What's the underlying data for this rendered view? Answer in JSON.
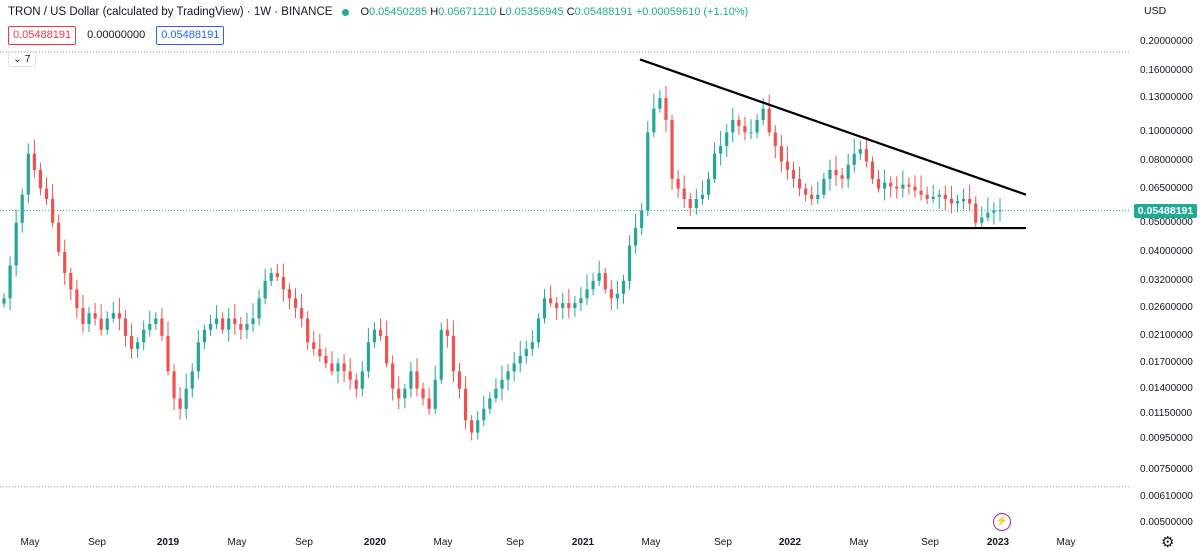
{
  "header": {
    "title": "TRON / US Dollar (calculated by TradingView) · 1W · BINANCE",
    "ohlc": {
      "o_label": "O",
      "o": "0.05450285",
      "h_label": "H",
      "h": "0.05671210",
      "l_label": "L",
      "l": "0.05356945",
      "c_label": "C",
      "c": "0.05488191",
      "change": "+0.00059610 (+1.10%)"
    },
    "status_dot_color": "#22ab94"
  },
  "inputs": {
    "sell": "0.05488191",
    "spread": "0.00000000",
    "buy": "0.05488191"
  },
  "collapse_label": "⌄ 7",
  "currency": "USD",
  "last_price": "0.05488191",
  "price_axis": [
    {
      "label": "0.20000000",
      "v": 0.2
    },
    {
      "label": "0.16000000",
      "v": 0.16
    },
    {
      "label": "0.13000000",
      "v": 0.13
    },
    {
      "label": "0.10000000",
      "v": 0.1
    },
    {
      "label": "0.08000000",
      "v": 0.08
    },
    {
      "label": "0.06500000",
      "v": 0.065
    },
    {
      "label": "0.05000000",
      "v": 0.05
    },
    {
      "label": "0.04000000",
      "v": 0.04
    },
    {
      "label": "0.03200000",
      "v": 0.032
    },
    {
      "label": "0.02600000",
      "v": 0.026
    },
    {
      "label": "0.02100000",
      "v": 0.021
    },
    {
      "label": "0.01700000",
      "v": 0.017
    },
    {
      "label": "0.01400000",
      "v": 0.014
    },
    {
      "label": "0.01150000",
      "v": 0.0115
    },
    {
      "label": "0.00950000",
      "v": 0.0095
    },
    {
      "label": "0.00750000",
      "v": 0.0075
    },
    {
      "label": "0.00610000",
      "v": 0.0061
    },
    {
      "label": "0.00500000",
      "v": 0.005
    }
  ],
  "time_axis": [
    {
      "label": "May",
      "bold": false
    },
    {
      "label": "Sep",
      "bold": false
    },
    {
      "label": "2019",
      "bold": true
    },
    {
      "label": "May",
      "bold": false
    },
    {
      "label": "Sep",
      "bold": false
    },
    {
      "label": "2020",
      "bold": true
    },
    {
      "label": "May",
      "bold": false
    },
    {
      "label": "Sep",
      "bold": false
    },
    {
      "label": "2021",
      "bold": true
    },
    {
      "label": "May",
      "bold": false
    },
    {
      "label": "Sep",
      "bold": false
    },
    {
      "label": "2022",
      "bold": true
    },
    {
      "label": "May",
      "bold": false
    },
    {
      "label": "Sep",
      "bold": false
    },
    {
      "label": "2023",
      "bold": true
    },
    {
      "label": "May",
      "bold": false
    }
  ],
  "chart_data": {
    "type": "candlestick",
    "scale": "log",
    "ylim": [
      0.005,
      0.2
    ],
    "x_start": "2018-04",
    "x_end": "2023-05",
    "closes": [
      0.028,
      0.036,
      0.05,
      0.062,
      0.085,
      0.075,
      0.065,
      0.06,
      0.05,
      0.04,
      0.034,
      0.03,
      0.026,
      0.023,
      0.025,
      0.024,
      0.022,
      0.024,
      0.025,
      0.024,
      0.021,
      0.019,
      0.02,
      0.022,
      0.023,
      0.024,
      0.021,
      0.016,
      0.013,
      0.012,
      0.014,
      0.016,
      0.02,
      0.022,
      0.023,
      0.024,
      0.022,
      0.024,
      0.023,
      0.022,
      0.023,
      0.024,
      0.028,
      0.032,
      0.034,
      0.033,
      0.03,
      0.028,
      0.026,
      0.024,
      0.02,
      0.019,
      0.018,
      0.017,
      0.016,
      0.017,
      0.016,
      0.015,
      0.014,
      0.016,
      0.02,
      0.022,
      0.021,
      0.017,
      0.014,
      0.013,
      0.014,
      0.016,
      0.014,
      0.013,
      0.012,
      0.015,
      0.022,
      0.021,
      0.016,
      0.014,
      0.011,
      0.01,
      0.011,
      0.012,
      0.013,
      0.014,
      0.015,
      0.016,
      0.017,
      0.018,
      0.019,
      0.02,
      0.024,
      0.028,
      0.027,
      0.026,
      0.027,
      0.026,
      0.027,
      0.028,
      0.03,
      0.032,
      0.034,
      0.03,
      0.028,
      0.029,
      0.032,
      0.042,
      0.048,
      0.055,
      0.1,
      0.12,
      0.13,
      0.11,
      0.07,
      0.065,
      0.06,
      0.056,
      0.06,
      0.062,
      0.07,
      0.085,
      0.09,
      0.1,
      0.11,
      0.105,
      0.1,
      0.1,
      0.11,
      0.12,
      0.1,
      0.09,
      0.08,
      0.075,
      0.07,
      0.065,
      0.062,
      0.06,
      0.062,
      0.07,
      0.075,
      0.072,
      0.07,
      0.078,
      0.085,
      0.088,
      0.08,
      0.07,
      0.065,
      0.068,
      0.066,
      0.065,
      0.067,
      0.066,
      0.064,
      0.062,
      0.06,
      0.061,
      0.062,
      0.06,
      0.058,
      0.059,
      0.06,
      0.058,
      0.05,
      0.052,
      0.054,
      0.055,
      0.055
    ],
    "annotations": [
      {
        "type": "trendline",
        "from": {
          "date": "2021-04",
          "price": 0.175
        },
        "to": {
          "date": "2023-04",
          "price": 0.062
        }
      },
      {
        "type": "horizontal",
        "from": {
          "date": "2021-06"
        },
        "to": {
          "date": "2023-04"
        },
        "price": 0.048
      }
    ],
    "last_price": 0.05488191
  }
}
